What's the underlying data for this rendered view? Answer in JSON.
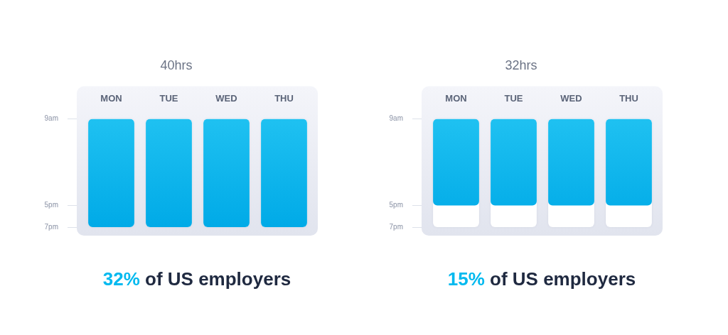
{
  "chart_data": [
    {
      "type": "bar",
      "title": "40hrs",
      "categories": [
        "MON",
        "TUE",
        "WED",
        "THU"
      ],
      "values": [
        [
          9,
          19
        ],
        [
          9,
          19
        ],
        [
          9,
          19
        ],
        [
          9,
          19
        ]
      ],
      "color": "#00b9ef",
      "ylim": [
        9,
        19
      ],
      "yticks": [
        {
          "value": 9,
          "label": "9am"
        },
        {
          "value": 17,
          "label": "5pm"
        },
        {
          "value": 19,
          "label": "7pm"
        }
      ],
      "grid": true,
      "annotation": {
        "highlight": "32%",
        "text": "of US employers"
      }
    },
    {
      "type": "bar",
      "title": "32hrs",
      "categories": [
        "MON",
        "TUE",
        "WED",
        "THU"
      ],
      "values": [
        [
          9,
          17
        ],
        [
          9,
          17
        ],
        [
          9,
          17
        ],
        [
          9,
          17
        ]
      ],
      "color": "#00b9ef",
      "ylim": [
        9,
        19
      ],
      "yticks": [
        {
          "value": 9,
          "label": "9am"
        },
        {
          "value": 17,
          "label": "5pm"
        },
        {
          "value": 19,
          "label": "7pm"
        }
      ],
      "grid": true,
      "annotation": {
        "highlight": "15%",
        "text": "of US employers"
      }
    }
  ]
}
